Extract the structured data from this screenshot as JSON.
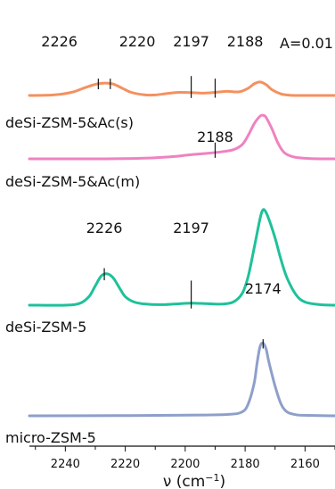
{
  "chart_data": {
    "type": "line",
    "x_reversed": true,
    "xlim": [
      2252,
      2150
    ],
    "xticks": [
      2240,
      2220,
      2200,
      2180,
      2160
    ],
    "xlabel_main": "ν (cm",
    "xlabel_sup": "−1",
    "xlabel_close": ")",
    "scale_label": "A=0.01",
    "series": [
      {
        "name": "deSi-ZSM-5&Ac(s)",
        "color": "#f4915f",
        "x": [
          2252,
          2244,
          2238,
          2234,
          2230,
          2227,
          2224,
          2221,
          2218,
          2214,
          2210,
          2206,
          2202,
          2198,
          2194,
          2190,
          2186,
          2182,
          2179,
          2177,
          2175,
          2173,
          2171,
          2168,
          2165,
          2160,
          2155,
          2150
        ],
        "y": [
          0.0,
          0.0002,
          0.0012,
          0.0028,
          0.0043,
          0.0048,
          0.0044,
          0.0028,
          0.0012,
          0.0003,
          0.0002,
          0.0008,
          0.0012,
          0.0011,
          0.0009,
          0.0012,
          0.0016,
          0.0014,
          0.0028,
          0.0045,
          0.0052,
          0.0042,
          0.0022,
          0.0006,
          0.0001,
          0.0,
          0.0,
          0.0
        ]
      },
      {
        "name": "deSi-ZSM-5&Ac(m)",
        "color": "#ef82c0",
        "x": [
          2252,
          2230,
          2215,
          2205,
          2198,
          2192,
          2188,
          2184,
          2181,
          2179,
          2177,
          2175,
          2174,
          2173,
          2171,
          2169,
          2167,
          2164,
          2160,
          2155,
          2150
        ],
        "y": [
          0.0,
          0.0,
          0.0002,
          0.0008,
          0.0016,
          0.0022,
          0.0027,
          0.0035,
          0.0055,
          0.009,
          0.0135,
          0.0165,
          0.0168,
          0.016,
          0.0115,
          0.006,
          0.0025,
          0.0008,
          0.0002,
          0.0,
          0.0
        ]
      },
      {
        "name": "deSi-ZSM-5",
        "color": "#1ec19a",
        "x": [
          2252,
          2240,
          2235,
          2232,
          2230,
          2228,
          2226,
          2224,
          2222,
          2220,
          2217,
          2213,
          2208,
          2203,
          2198,
          2193,
          2188,
          2184,
          2181,
          2179,
          2177,
          2175,
          2174,
          2173,
          2172,
          2170,
          2168,
          2166,
          2163,
          2160,
          2155,
          2150
        ],
        "y": [
          0.0,
          0.0,
          0.0008,
          0.0035,
          0.0075,
          0.0113,
          0.0121,
          0.0105,
          0.0068,
          0.0033,
          0.0012,
          0.0004,
          0.0002,
          0.0005,
          0.0008,
          0.0006,
          0.0004,
          0.0012,
          0.0045,
          0.011,
          0.022,
          0.0335,
          0.0369,
          0.0358,
          0.033,
          0.026,
          0.0175,
          0.0105,
          0.004,
          0.0012,
          0.0002,
          0.0
        ]
      },
      {
        "name": "micro-ZSM-5",
        "color": "#8e9fca",
        "x": [
          2252,
          2220,
          2195,
          2185,
          2181,
          2179,
          2177,
          2176,
          2175,
          2174,
          2173,
          2172,
          2170,
          2168,
          2166,
          2163,
          2160,
          2155,
          2150
        ],
        "y": [
          0.0,
          0.0001,
          0.0003,
          0.0006,
          0.0015,
          0.0045,
          0.0125,
          0.0205,
          0.0268,
          0.0281,
          0.0258,
          0.0205,
          0.0115,
          0.0045,
          0.0015,
          0.0004,
          0.0002,
          0.0001,
          0.0
        ]
      }
    ],
    "peak_markers": [
      {
        "series": 0,
        "label": "2226",
        "x": 2229,
        "y_top": 0.0065,
        "label_x": 2242
      },
      {
        "series": 0,
        "label": "2220",
        "x": 2225,
        "y_top": 0.0065,
        "label_x": 2216
      },
      {
        "series": 0,
        "label": "2197",
        "x": 2198,
        "y_top": 0.0075,
        "label_x": 2198
      },
      {
        "series": 0,
        "label": "2188",
        "x": 2190,
        "y_top": 0.0065,
        "label_x": 2180
      },
      {
        "series": 1,
        "label": "2188",
        "x": 2190,
        "y_top": 0.0063,
        "label_x": 2190
      },
      {
        "series": 2,
        "label": "2226",
        "x": 2227,
        "y_top": 0.0143,
        "label_x": 2227
      },
      {
        "series": 2,
        "label": "2197",
        "x": 2198,
        "y_top": 0.0095,
        "label_x": 2198
      },
      {
        "series": 3,
        "label": "2174",
        "x": 2174,
        "y_top": 0.0296,
        "label_x": 2174
      }
    ]
  }
}
